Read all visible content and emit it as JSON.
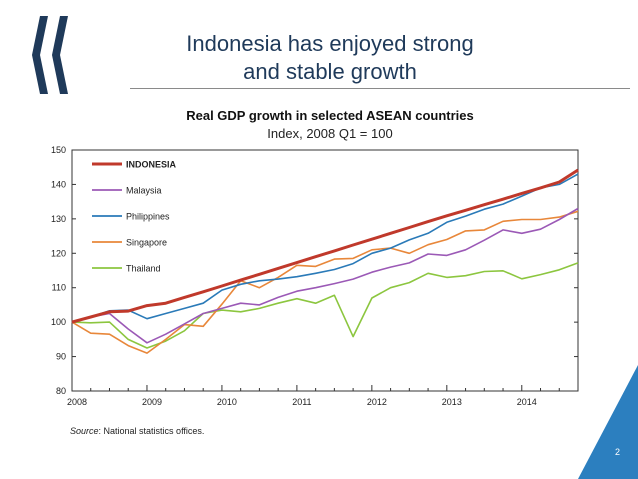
{
  "slide": {
    "title_line1": "Indonesia has enjoyed strong",
    "title_line2": "and stable growth",
    "source_label": "Source",
    "source_text": ": National statistics offices.",
    "page_number": "2"
  },
  "colors": {
    "title": "#1f3a5a",
    "logo": "#1f3a5a",
    "corner": "#2c7fbf",
    "indonesia": "#c0392b",
    "malaysia": "#9b59b6",
    "philippines": "#2a7ab8",
    "singapore": "#e8873a",
    "thailand": "#8cc63f"
  },
  "chart_data": {
    "type": "line",
    "title": "Real GDP growth in selected ASEAN countries",
    "subtitle": "Index, 2008 Q1 = 100",
    "xlabel": "",
    "ylabel": "",
    "ylim": [
      80,
      150
    ],
    "yticks": [
      80,
      90,
      100,
      110,
      120,
      130,
      140,
      150
    ],
    "xlim": [
      2008,
      2014.75
    ],
    "xticks": [
      2008,
      2009,
      2010,
      2011,
      2012,
      2013,
      2014
    ],
    "xtick_labels": [
      "2008",
      "2009",
      "2010",
      "2011",
      "2012",
      "2013",
      "2014"
    ],
    "grid": false,
    "legend_position": "top-left",
    "x": [
      2008,
      2008.25,
      2008.5,
      2008.75,
      2009,
      2009.25,
      2009.5,
      2009.75,
      2010,
      2010.25,
      2010.5,
      2010.75,
      2011,
      2011.25,
      2011.5,
      2011.75,
      2012,
      2012.25,
      2012.5,
      2012.75,
      2013,
      2013.25,
      2013.5,
      2013.75,
      2014,
      2014.25,
      2014.5,
      2014.75
    ],
    "series": [
      {
        "name": "INDONESIA",
        "bold": true,
        "values": [
          100,
          101.5,
          103,
          103.2,
          104.8,
          105.5,
          107.2,
          108.8,
          110.5,
          112.2,
          113.9,
          115.6,
          117.3,
          119.0,
          120.7,
          122.4,
          124.1,
          125.8,
          127.5,
          129.2,
          130.9,
          132.5,
          134.1,
          135.7,
          137.4,
          139.0,
          140.7,
          144.2
        ]
      },
      {
        "name": "Malaysia",
        "values": [
          100,
          101.5,
          102.5,
          98,
          94,
          96.5,
          99.5,
          102.5,
          104,
          105.5,
          105,
          107.2,
          109,
          110,
          111.2,
          112.5,
          114.5,
          116,
          117.2,
          119.8,
          119.4,
          121,
          123.8,
          126.8,
          125.8,
          127,
          129.8,
          133
        ]
      },
      {
        "name": "Philippines",
        "values": [
          100,
          101.5,
          103.3,
          103.5,
          101,
          102.5,
          104,
          105.5,
          109.3,
          111,
          112,
          112.5,
          113.2,
          114.2,
          115.3,
          117,
          120,
          121.5,
          123.9,
          125.8,
          129,
          130.8,
          132.8,
          134.3,
          136.6,
          139,
          140,
          143
        ]
      },
      {
        "name": "Singapore",
        "values": [
          100,
          96.8,
          96.5,
          93.2,
          91,
          95,
          99.3,
          98.8,
          105.2,
          112,
          110,
          113,
          116.5,
          116.2,
          118.3,
          118.5,
          121,
          121.5,
          120,
          122.5,
          124,
          126.5,
          126.8,
          129.3,
          129.8,
          129.8,
          130.5,
          132.2
        ]
      },
      {
        "name": "Thailand",
        "values": [
          100,
          99.8,
          100,
          95,
          92.5,
          94.5,
          97.5,
          102.5,
          103.5,
          103,
          104,
          105.5,
          106.8,
          105.5,
          107.8,
          95.8,
          107,
          110,
          111.5,
          114.2,
          113,
          113.5,
          114.7,
          114.9,
          112.6,
          113.8,
          115.2,
          117.2
        ]
      }
    ]
  }
}
